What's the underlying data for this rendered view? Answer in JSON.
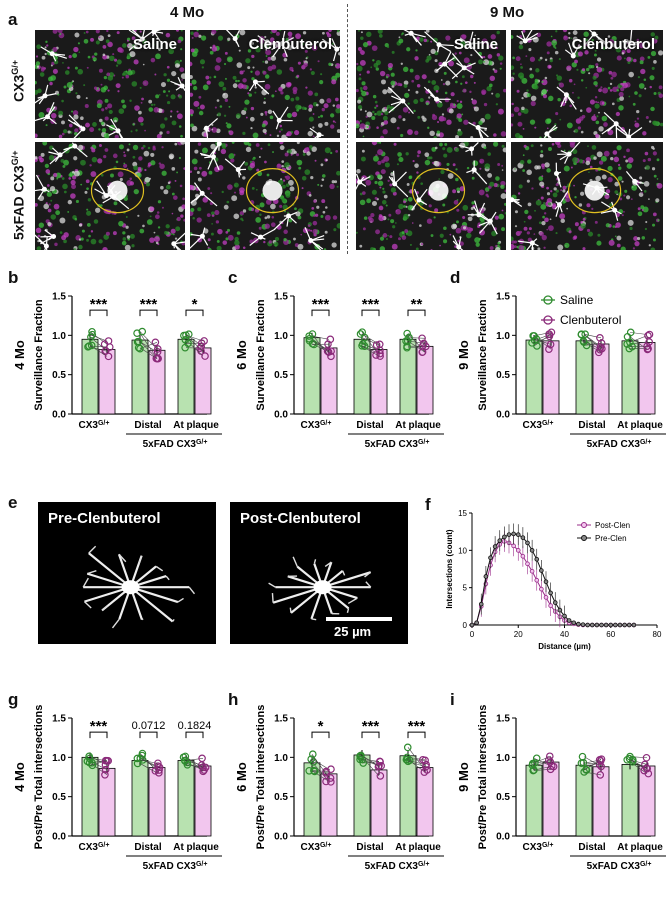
{
  "panel_a": {
    "letter": "a",
    "col_headers": [
      "4 Mo",
      "9 Mo"
    ],
    "row_labels": [
      "CX3",
      "5xFAD CX3"
    ],
    "row_superscript": "G/+",
    "image_labels": [
      "Saline",
      "Clenbuterol",
      "Saline",
      "Clenbuterol"
    ]
  },
  "panel_e": {
    "letter": "e",
    "left_label": "Pre-Clenbuterol",
    "right_label": "Post-Clenbuterol",
    "scale_label": "25 µm"
  },
  "legend": {
    "saline": "Saline",
    "clen": "Clenbuterol"
  },
  "colors": {
    "saline_fill": "#b8e2b0",
    "saline_edge": "#2e8b2e",
    "clen_fill": "#f2c6ee",
    "clen_edge": "#8b2a7a",
    "post_clen": "#9a2c8a",
    "pre_clen": "#111111"
  },
  "chart_data": [
    {
      "type": "bar",
      "panel": "b",
      "row_label": "4 Mo",
      "ylabel": "Surveillance Fraction",
      "ylim": [
        0,
        1.5
      ],
      "yticks": [
        "0.0",
        "0.5",
        "1.0",
        "1.5"
      ],
      "groups": [
        "CX3",
        "Distal",
        "At plaque"
      ],
      "group_sup": "G/+",
      "bracket_label": "5xFAD CX3",
      "series": [
        {
          "name": "Saline",
          "values": [
            0.95,
            0.94,
            0.95
          ]
        },
        {
          "name": "Clenbuterol",
          "values": [
            0.82,
            0.81,
            0.84
          ]
        }
      ],
      "significance": [
        "***",
        "***",
        "*"
      ]
    },
    {
      "type": "bar",
      "panel": "c",
      "row_label": "6 Mo",
      "ylabel": "Surveillance Fraction",
      "ylim": [
        0,
        1.5
      ],
      "yticks": [
        "0.0",
        "0.5",
        "1.0",
        "1.5"
      ],
      "groups": [
        "CX3",
        "Distal",
        "At plaque"
      ],
      "group_sup": "G/+",
      "bracket_label": "5xFAD CX3",
      "series": [
        {
          "name": "Saline",
          "values": [
            0.97,
            0.95,
            0.95
          ]
        },
        {
          "name": "Clenbuterol",
          "values": [
            0.84,
            0.82,
            0.86
          ]
        }
      ],
      "significance": [
        "***",
        "***",
        "**"
      ]
    },
    {
      "type": "bar",
      "panel": "d",
      "row_label": "9 Mo",
      "ylabel": "Surveillance Fraction",
      "ylim": [
        0,
        1.5
      ],
      "yticks": [
        "0.0",
        "0.5",
        "1.0",
        "1.5"
      ],
      "groups": [
        "CX3",
        "Distal",
        "At plaque"
      ],
      "group_sup": "G/+",
      "bracket_label": "5xFAD CX3",
      "series": [
        {
          "name": "Saline",
          "values": [
            0.94,
            0.93,
            0.93
          ]
        },
        {
          "name": "Clenbuterol",
          "values": [
            0.93,
            0.89,
            0.91
          ]
        }
      ],
      "significance": [
        "",
        "",
        ""
      ]
    },
    {
      "type": "line",
      "panel": "f",
      "xlabel": "Distance (µm)",
      "ylabel": "Intersections (count)",
      "xlim": [
        0,
        80
      ],
      "ylim": [
        0,
        15
      ],
      "xticks": [
        "0",
        "20",
        "40",
        "60",
        "80"
      ],
      "yticks": [
        "0",
        "5",
        "10",
        "15"
      ],
      "x": [
        0,
        2,
        4,
        6,
        8,
        10,
        12,
        14,
        16,
        18,
        20,
        22,
        24,
        26,
        28,
        30,
        32,
        34,
        36,
        38,
        40,
        42,
        44,
        46,
        48,
        50,
        52,
        54,
        56,
        58,
        60,
        62,
        64,
        66,
        68,
        70
      ],
      "series": [
        {
          "name": "Post-Clen",
          "values": [
            0,
            0.3,
            2.5,
            5.5,
            8.0,
            9.8,
            10.8,
            11.2,
            11.0,
            10.6,
            10.0,
            9.2,
            8.2,
            7.2,
            6.0,
            4.8,
            3.7,
            2.6,
            1.8,
            1.1,
            0.6,
            0.3,
            0.15,
            0.05,
            0,
            0,
            0,
            0,
            0,
            0,
            0,
            0,
            0,
            0,
            0,
            0
          ]
        },
        {
          "name": "Pre-Clen",
          "values": [
            0,
            0.3,
            2.8,
            6.5,
            9.0,
            10.5,
            11.3,
            11.8,
            12.1,
            12.2,
            12.1,
            11.7,
            11.0,
            10.0,
            8.8,
            7.3,
            5.8,
            4.3,
            3.0,
            2.0,
            1.2,
            0.6,
            0.3,
            0.12,
            0.05,
            0,
            0,
            0,
            0,
            0,
            0,
            0,
            0,
            0,
            0,
            0
          ]
        }
      ]
    },
    {
      "type": "bar",
      "panel": "g",
      "row_label": "4 Mo",
      "ylabel": "Post/Pre Total intersections",
      "ylim": [
        0,
        1.5
      ],
      "yticks": [
        "0.0",
        "0.5",
        "1.0",
        "1.5"
      ],
      "groups": [
        "CX3",
        "Distal",
        "At plaque"
      ],
      "group_sup": "G/+",
      "bracket_label": "5xFAD CX3",
      "series": [
        {
          "name": "Saline",
          "values": [
            1.0,
            0.96,
            0.96
          ]
        },
        {
          "name": "Clenbuterol",
          "values": [
            0.86,
            0.87,
            0.89
          ]
        }
      ],
      "significance": [
        "***",
        "0.0712",
        "0.1824"
      ]
    },
    {
      "type": "bar",
      "panel": "h",
      "row_label": "6 Mo",
      "ylabel": "Post/Pre Total intersections",
      "ylim": [
        0,
        1.5
      ],
      "yticks": [
        "0.0",
        "0.5",
        "1.0",
        "1.5"
      ],
      "groups": [
        "CX3",
        "Distal",
        "At plaque"
      ],
      "group_sup": "G/+",
      "bracket_label": "5xFAD CX3",
      "series": [
        {
          "name": "Saline",
          "values": [
            0.93,
            1.03,
            1.02
          ]
        },
        {
          "name": "Clenbuterol",
          "values": [
            0.79,
            0.84,
            0.87
          ]
        }
      ],
      "significance": [
        "*",
        "***",
        "***"
      ]
    },
    {
      "type": "bar",
      "panel": "i",
      "row_label": "9 Mo",
      "ylabel": "Post/Pre Total intersections",
      "ylim": [
        0,
        1.5
      ],
      "yticks": [
        "0.0",
        "0.5",
        "1.0",
        "1.5"
      ],
      "groups": [
        "CX3",
        "Distal",
        "At plaque"
      ],
      "group_sup": "G/+",
      "bracket_label": "5xFAD CX3",
      "series": [
        {
          "name": "Saline",
          "values": [
            0.9,
            0.9,
            0.91
          ]
        },
        {
          "name": "Clenbuterol",
          "values": [
            0.94,
            0.88,
            0.89
          ]
        }
      ],
      "significance": [
        "",
        "",
        ""
      ]
    }
  ]
}
